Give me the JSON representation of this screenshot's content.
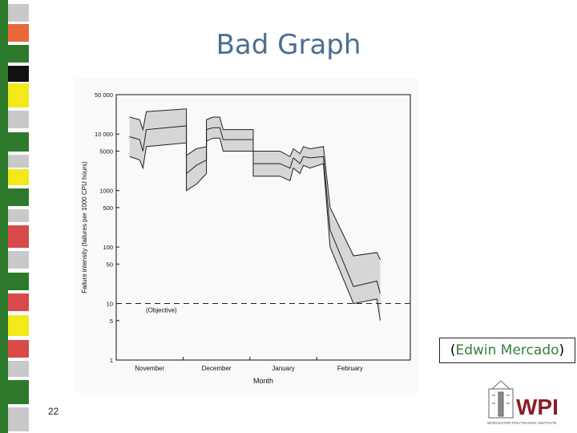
{
  "slide": {
    "title": "Bad Graph",
    "attribution_open": "(",
    "attribution_name": "Edwin Mercado",
    "attribution_close": ")",
    "page_number": "22",
    "logo_text": "WPI",
    "logo_subtext": "WORCESTER POLYTECHNIC INSTITUTE"
  },
  "stripe_colors": [
    "#2d7a2d",
    "#e8683a",
    "#f2e81a",
    "#111111",
    "#d94a4a",
    "#c9c9c9"
  ],
  "chart_data": {
    "type": "area",
    "xlabel": "Month",
    "ylabel": "Failure intensity (failures per 1000 CPU hours)",
    "y_scale": "log",
    "ylim": [
      1,
      50000
    ],
    "y_ticks": [
      {
        "value": 50000,
        "label": "50 000"
      },
      {
        "value": 10000,
        "label": "10 000"
      },
      {
        "value": 5000,
        "label": "5000"
      },
      {
        "value": 1000,
        "label": "1000"
      },
      {
        "value": 500,
        "label": "500"
      },
      {
        "value": 100,
        "label": "100"
      },
      {
        "value": 50,
        "label": "50"
      },
      {
        "value": 10,
        "label": "10"
      },
      {
        "value": 5,
        "label": "5"
      },
      {
        "value": 1,
        "label": "1"
      }
    ],
    "x_ticks": [
      "November",
      "December",
      "January",
      "February"
    ],
    "xlim": [
      0,
      4.4
    ],
    "objective": {
      "value": 10,
      "label": "(Objective)"
    },
    "series": [
      {
        "upper": [
          [
            0.2,
            20000
          ],
          [
            0.35,
            18000
          ],
          [
            0.4,
            12000
          ],
          [
            0.45,
            25000
          ],
          [
            1.05,
            28000
          ],
          [
            1.05,
            4200
          ],
          [
            1.2,
            5500
          ],
          [
            1.35,
            6000
          ],
          [
            1.35,
            18000
          ],
          [
            1.45,
            20000
          ],
          [
            1.55,
            20000
          ],
          [
            1.6,
            12000
          ],
          [
            2.05,
            12000
          ],
          [
            2.05,
            5000
          ],
          [
            2.45,
            5000
          ],
          [
            2.6,
            4000
          ],
          [
            2.65,
            5500
          ],
          [
            2.75,
            4500
          ],
          [
            2.8,
            6000
          ],
          [
            2.9,
            5500
          ],
          [
            3.1,
            6000
          ],
          [
            3.2,
            500
          ],
          [
            3.55,
            70
          ],
          [
            3.9,
            80
          ],
          [
            3.95,
            60
          ]
        ],
        "middle": [
          [
            0.2,
            9000
          ],
          [
            0.35,
            8000
          ],
          [
            0.4,
            5000
          ],
          [
            0.45,
            12000
          ],
          [
            1.05,
            14000
          ],
          [
            1.05,
            2000
          ],
          [
            1.2,
            2800
          ],
          [
            1.35,
            3500
          ],
          [
            1.35,
            12000
          ],
          [
            1.45,
            13000
          ],
          [
            1.55,
            13000
          ],
          [
            1.6,
            8000
          ],
          [
            2.05,
            8000
          ],
          [
            2.05,
            3000
          ],
          [
            2.45,
            3000
          ],
          [
            2.6,
            2500
          ],
          [
            2.65,
            3800
          ],
          [
            2.75,
            3000
          ],
          [
            2.8,
            4000
          ],
          [
            2.9,
            3800
          ],
          [
            3.1,
            4000
          ],
          [
            3.2,
            200
          ],
          [
            3.55,
            20
          ],
          [
            3.9,
            25
          ],
          [
            3.95,
            15
          ]
        ],
        "lower": [
          [
            0.2,
            4000
          ],
          [
            0.35,
            3500
          ],
          [
            0.4,
            2500
          ],
          [
            0.45,
            6000
          ],
          [
            1.05,
            7000
          ],
          [
            1.05,
            1000
          ],
          [
            1.2,
            1300
          ],
          [
            1.35,
            2000
          ],
          [
            1.35,
            7500
          ],
          [
            1.45,
            8500
          ],
          [
            1.55,
            8500
          ],
          [
            1.6,
            5000
          ],
          [
            2.05,
            5000
          ],
          [
            2.05,
            1800
          ],
          [
            2.45,
            1800
          ],
          [
            2.6,
            1500
          ],
          [
            2.65,
            2500
          ],
          [
            2.75,
            2000
          ],
          [
            2.8,
            2800
          ],
          [
            2.9,
            2500
          ],
          [
            3.1,
            3000
          ],
          [
            3.2,
            100
          ],
          [
            3.55,
            10
          ],
          [
            3.9,
            12
          ],
          [
            3.95,
            5
          ]
        ]
      }
    ]
  }
}
